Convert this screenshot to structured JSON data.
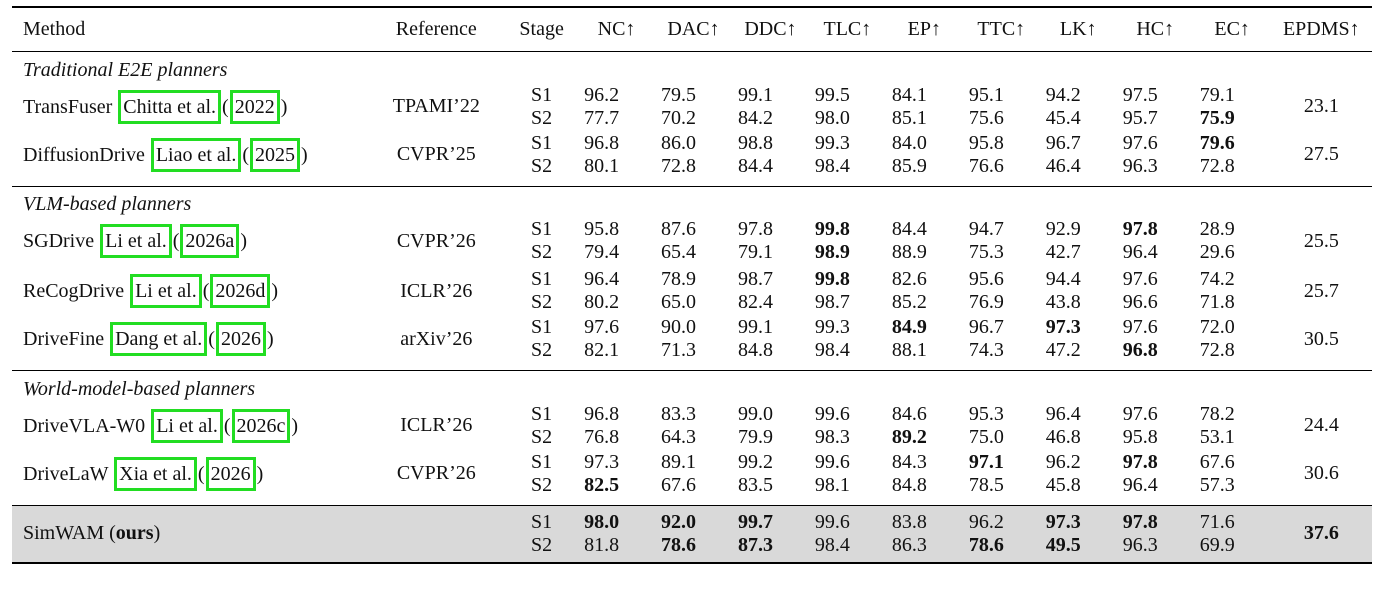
{
  "headers": {
    "method": "Method",
    "reference": "Reference",
    "stage": "Stage",
    "metrics": [
      "NC↑",
      "DAC↑",
      "DDC↑",
      "TLC↑",
      "EP↑",
      "TTC↑",
      "LK↑",
      "HC↑",
      "EC↑"
    ],
    "epdms": "EPDMS↑"
  },
  "groups": [
    {
      "title": "Traditional E2E planners",
      "rows": [
        {
          "name": "TransFuser",
          "cite_author": "Chitta et al.",
          "cite_year": "2022",
          "reference": "TPAMI’22",
          "stages": [
            "S1",
            "S2"
          ],
          "s1": [
            "96.2",
            "79.5",
            "99.1",
            "99.5",
            "84.1",
            "95.1",
            "94.2",
            "97.5",
            "79.1"
          ],
          "s2": [
            "77.7",
            "70.2",
            "84.2",
            "98.0",
            "85.1",
            "75.6",
            "45.4",
            "95.7",
            "75.9"
          ],
          "epdms": "23.1"
        },
        {
          "name": "DiffusionDrive",
          "cite_author": "Liao et al.",
          "cite_year": "2025",
          "reference": "CVPR’25",
          "stages": [
            "S1",
            "S2"
          ],
          "s1": [
            "96.8",
            "86.0",
            "98.8",
            "99.3",
            "84.0",
            "95.8",
            "96.7",
            "97.6",
            "79.6"
          ],
          "s2": [
            "80.1",
            "72.8",
            "84.4",
            "98.4",
            "85.9",
            "76.6",
            "46.4",
            "96.3",
            "72.8"
          ],
          "epdms": "27.5"
        }
      ]
    },
    {
      "title": "VLM-based planners",
      "rows": [
        {
          "name": "SGDrive",
          "cite_author": "Li et al.",
          "cite_year": "2026a",
          "reference": "CVPR’26",
          "stages": [
            "S1",
            "S2"
          ],
          "s1": [
            "95.8",
            "87.6",
            "97.8",
            "99.8",
            "84.4",
            "94.7",
            "92.9",
            "97.8",
            "28.9"
          ],
          "s2": [
            "79.4",
            "65.4",
            "79.1",
            "98.9",
            "88.9",
            "75.3",
            "42.7",
            "96.4",
            "29.6"
          ],
          "epdms": "25.5"
        },
        {
          "name": "ReCogDrive",
          "cite_author": "Li et al.",
          "cite_year": "2026d",
          "reference": "ICLR’26",
          "stages": [
            "S1",
            "S2"
          ],
          "s1": [
            "96.4",
            "78.9",
            "98.7",
            "99.8",
            "82.6",
            "95.6",
            "94.4",
            "97.6",
            "74.2"
          ],
          "s2": [
            "80.2",
            "65.0",
            "82.4",
            "98.7",
            "85.2",
            "76.9",
            "43.8",
            "96.6",
            "71.8"
          ],
          "epdms": "25.7"
        },
        {
          "name": "DriveFine",
          "cite_author": "Dang et al.",
          "cite_year": "2026",
          "reference": "arXiv’26",
          "stages": [
            "S1",
            "S2"
          ],
          "s1": [
            "97.6",
            "90.0",
            "99.1",
            "99.3",
            "84.9",
            "96.7",
            "97.3",
            "97.6",
            "72.0"
          ],
          "s2": [
            "82.1",
            "71.3",
            "84.8",
            "98.4",
            "88.1",
            "74.3",
            "47.2",
            "96.8",
            "72.8"
          ],
          "epdms": "30.5"
        }
      ]
    },
    {
      "title": "World-model-based planners",
      "rows": [
        {
          "name": "DriveVLA-W0",
          "cite_author": "Li et al.",
          "cite_year": "2026c",
          "reference": "ICLR’26",
          "stages": [
            "S1",
            "S2"
          ],
          "s1": [
            "96.8",
            "83.3",
            "99.0",
            "99.6",
            "84.6",
            "95.3",
            "96.4",
            "97.6",
            "78.2"
          ],
          "s2": [
            "76.8",
            "64.3",
            "79.9",
            "98.3",
            "89.2",
            "75.0",
            "46.8",
            "95.8",
            "53.1"
          ],
          "epdms": "24.4"
        },
        {
          "name": "DriveLaW",
          "cite_author": "Xia et al.",
          "cite_year": "2026",
          "reference": "CVPR’26",
          "stages": [
            "S1",
            "S2"
          ],
          "s1": [
            "97.3",
            "89.1",
            "99.2",
            "99.6",
            "84.3",
            "97.1",
            "96.2",
            "97.8",
            "67.6"
          ],
          "s2": [
            "82.5",
            "67.6",
            "83.5",
            "98.1",
            "84.8",
            "78.5",
            "45.8",
            "96.4",
            "57.3"
          ],
          "epdms": "30.6"
        }
      ]
    }
  ],
  "ours": {
    "name": "SimWAM",
    "suffix": "ours",
    "stages": [
      "S1",
      "S2"
    ],
    "s1": [
      "98.0",
      "92.0",
      "99.7",
      "99.6",
      "83.8",
      "96.2",
      "97.3",
      "97.8",
      "71.6"
    ],
    "s2": [
      "81.8",
      "78.6",
      "87.3",
      "98.4",
      "86.3",
      "78.6",
      "49.5",
      "96.3",
      "69.9"
    ],
    "epdms": "37.6"
  }
}
